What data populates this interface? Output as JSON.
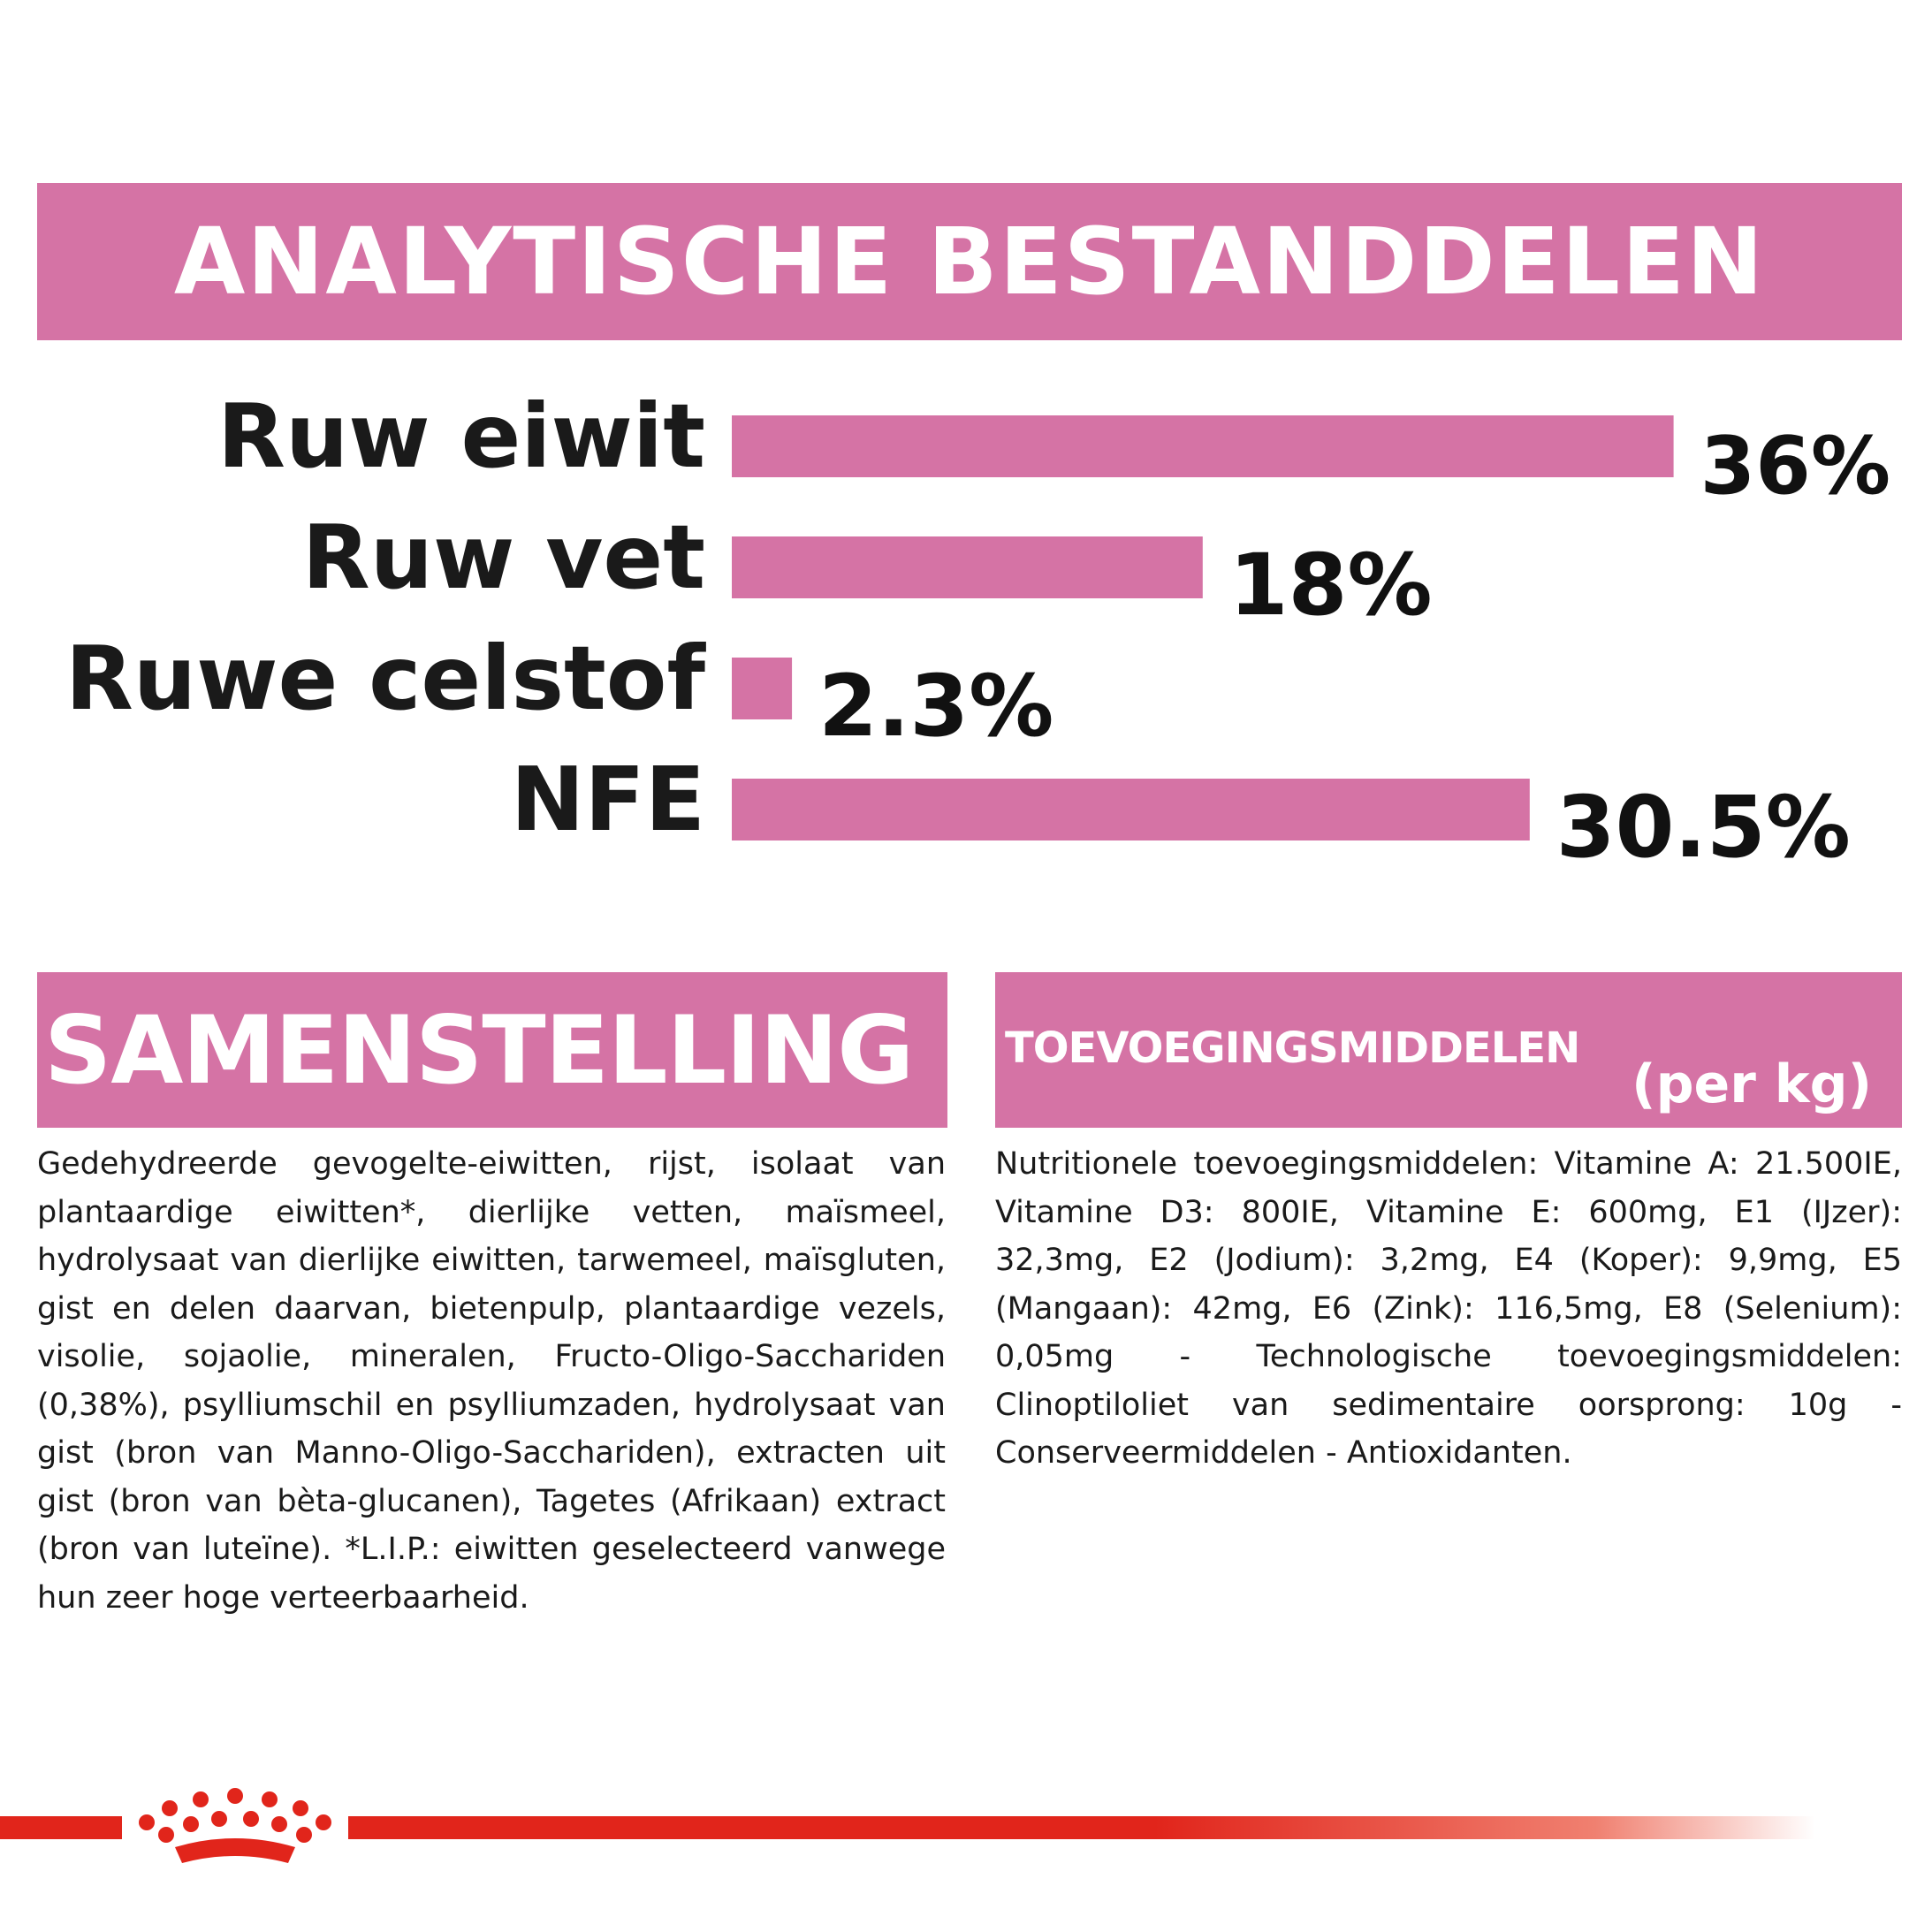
{
  "analytic": {
    "title": "ANALYTISCHE BESTANDDELEN"
  },
  "chart_data": {
    "type": "bar",
    "orientation": "horizontal",
    "categories": [
      "Ruw eiwit",
      "Ruw vet",
      "Ruwe celstof",
      "NFE"
    ],
    "values": [
      36,
      18,
      2.3,
      30.5
    ],
    "value_labels": [
      "36%",
      "18%",
      "2.3%",
      "30.5%"
    ],
    "title": "ANALYTISCHE BESTANDDELEN",
    "bar_color": "#d573a5",
    "grid": false,
    "legend": "none"
  },
  "samenstelling": {
    "title": "SAMENSTELLING",
    "text": "Gedehydreerde gevogelte-eiwitten, rijst, isolaat van plantaardige eiwitten*, dierlijke vetten, maïsmeel, hydrolysaat van dierlijke eiwitten, tarwemeel, maïsgluten, gist en delen daarvan, bietenpulp, plantaardige vezels, visolie, sojaolie, mineralen, Fructo-Oligo-Sacchariden (0,38%), psylliumschil en psylliumzaden, hydrolysaat van gist (bron van Manno-Oligo-Sacchariden), extracten uit gist (bron van bèta-glucanen), Tagetes (Afrikaan) extract (bron van luteïne). *L.I.P.: eiwitten geselecteerd vanwege hun zeer hoge verteerbaarheid."
  },
  "toevoegingsmiddelen": {
    "title": "TOEVOEGINGSMIDDELEN",
    "unit": "(per kg)",
    "text": "Nutritionele toevoegingsmiddelen: Vitamine A: 21.500IE, Vitamine D3: 800IE, Vitamine E: 600mg, E1 (IJzer): 32,3mg, E2 (Jodium): 3,2mg, E4 (Koper): 9,9mg, E5 (Mangaan): 42mg, E6 (Zink): 116,5mg, E8 (Selenium): 0,05mg - Technologische toevoegingsmiddelen: Clinoptiloliet van sedimentaire oorsprong: 10g - Conserveermiddelen - Antioxidanten."
  },
  "footer": {
    "logo": "royal-canin-crown-icon",
    "brand_color": "#e1251b"
  }
}
